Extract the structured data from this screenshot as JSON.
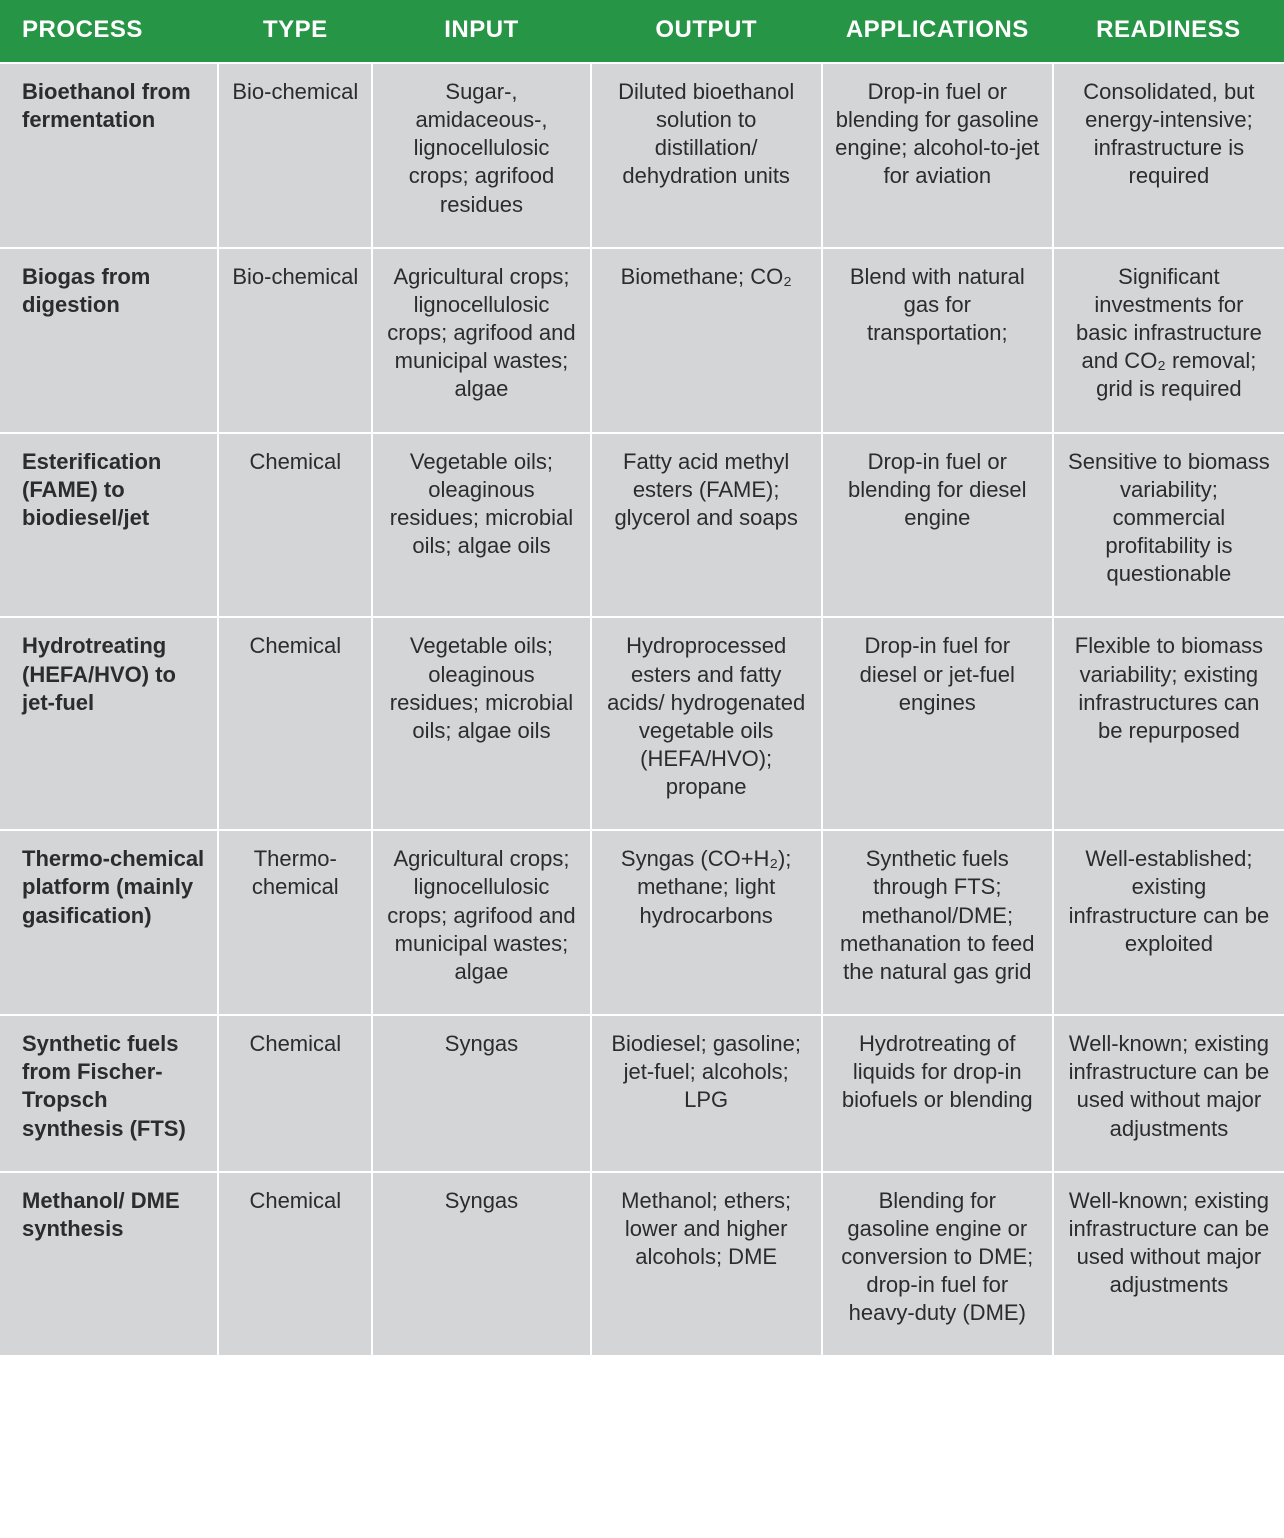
{
  "table": {
    "header_bg": "#279546",
    "header_fg": "#ffffff",
    "cell_bg": "#d4d5d6",
    "cell_fg": "#2b2c2d",
    "divider_color": "#ffffff",
    "header_fontsize": 24,
    "cell_fontsize": 22,
    "columns": [
      "PROCESS",
      "TYPE",
      "INPUT",
      "OUTPUT",
      "APPLICATIONS",
      "READINESS"
    ],
    "column_widths_pct": [
      17,
      12,
      17,
      18,
      18,
      18
    ],
    "rows": [
      {
        "process": "Bioethanol from fermentation",
        "type": "Bio-chemical",
        "input": "Sugar-, amidaceous-, lignocellulosic crops; agrifood residues",
        "output": "Diluted bioethanol solution to distillation/ dehydration units",
        "applications": "Drop-in fuel or blending for gasoline engine; alcohol-to-jet for aviation",
        "readiness": "Consolidated, but energy-intensive; infrastructure is required"
      },
      {
        "process": "Biogas from digestion",
        "type": "Bio-chemical",
        "input": "Agricultural crops; lignocellulosic crops; agrifood and municipal wastes; algae",
        "output": "Biomethane; CO₂",
        "applications": "Blend with natural gas for transportation;",
        "readiness": "Significant investments for basic infrastructure and CO₂ removal; grid is required"
      },
      {
        "process": "Esterification (FAME) to biodiesel/jet",
        "type": "Chemical",
        "input": "Vegetable oils; oleaginous residues; microbial oils; algae oils",
        "output": "Fatty acid methyl esters (FAME); glycerol and soaps",
        "applications": "Drop-in fuel or blending for diesel engine",
        "readiness": "Sensitive to biomass variability; commercial profitability is questionable"
      },
      {
        "process": "Hydrotreating (HEFA/HVO) to jet-fuel",
        "type": "Chemical",
        "input": "Vegetable oils; oleaginous residues; microbial oils; algae oils",
        "output": "Hydroprocessed esters and fatty acids/ hydrogenated vegetable oils (HEFA/HVO); propane",
        "applications": "Drop-in fuel for diesel or jet-fuel engines",
        "readiness": "Flexible to biomass variability; existing infrastructures can be repurposed"
      },
      {
        "process": "Thermo-chemical platform (mainly gasification)",
        "type": "Thermo-chemical",
        "input": "Agricultural crops; lignocellulosic crops; agrifood and municipal wastes; algae",
        "output": "Syngas (CO+H₂); methane; light hydrocarbons",
        "applications": "Synthetic fuels through FTS; methanol/DME; methanation to feed the natural gas grid",
        "readiness": "Well-established; existing infrastructure can be exploited"
      },
      {
        "process": "Synthetic fuels from Fischer-Tropsch synthesis (FTS)",
        "type": "Chemical",
        "input": "Syngas",
        "output": "Biodiesel; gasoline; jet-fuel; alcohols; LPG",
        "applications": "Hydrotreating of liquids for drop-in biofuels or blending",
        "readiness": "Well-known; existing infrastructure can be used without major adjustments"
      },
      {
        "process": "Methanol/ DME synthesis",
        "type": "Chemical",
        "input": "Syngas",
        "output": "Methanol; ethers; lower and higher alcohols; DME",
        "applications": "Blending for gasoline engine or conversion to DME; drop-in fuel for heavy-duty (DME)",
        "readiness": "Well-known; existing infrastructure can be used without major adjustments"
      }
    ]
  }
}
